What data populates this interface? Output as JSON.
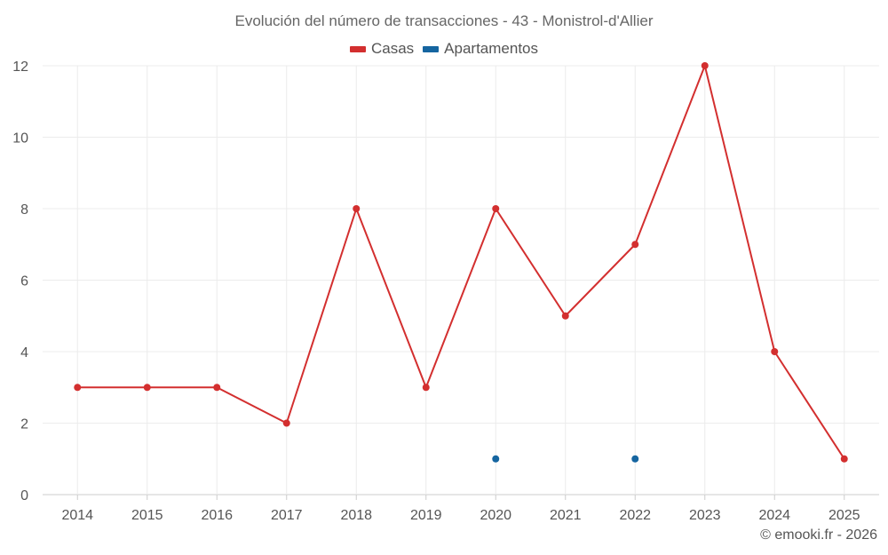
{
  "chart_data": {
    "type": "line",
    "title": "Evolución del número de transacciones - 43 - Monistrol-d'Allier",
    "xlabel": "",
    "ylabel": "",
    "categories": [
      "2014",
      "2015",
      "2016",
      "2017",
      "2018",
      "2019",
      "2020",
      "2021",
      "2022",
      "2023",
      "2024",
      "2025"
    ],
    "ylim": [
      0,
      12
    ],
    "yticks": [
      0,
      2,
      4,
      6,
      8,
      10,
      12
    ],
    "grid": true,
    "legend_position": "top-center",
    "series": [
      {
        "name": "Casas",
        "color": "#d32f2f",
        "values": [
          3,
          3,
          3,
          2,
          8,
          3,
          8,
          5,
          7,
          12,
          4,
          1
        ]
      },
      {
        "name": "Apartamentos",
        "color": "#1565a0",
        "values": [
          null,
          null,
          null,
          null,
          null,
          null,
          1,
          null,
          1,
          null,
          null,
          null
        ]
      }
    ]
  },
  "credit": "© emooki.fr - 2026"
}
